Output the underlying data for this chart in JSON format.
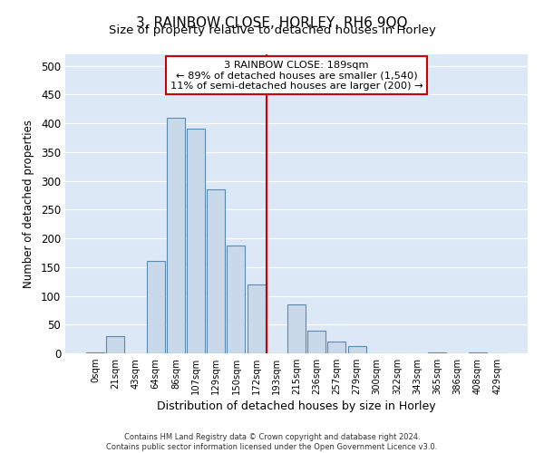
{
  "title": "3, RAINBOW CLOSE, HORLEY, RH6 9QQ",
  "subtitle": "Size of property relative to detached houses in Horley",
  "xlabel": "Distribution of detached houses by size in Horley",
  "ylabel": "Number of detached properties",
  "bar_labels": [
    "0sqm",
    "21sqm",
    "43sqm",
    "64sqm",
    "86sqm",
    "107sqm",
    "129sqm",
    "150sqm",
    "172sqm",
    "193sqm",
    "215sqm",
    "236sqm",
    "257sqm",
    "279sqm",
    "300sqm",
    "322sqm",
    "343sqm",
    "365sqm",
    "386sqm",
    "408sqm",
    "429sqm"
  ],
  "bar_heights": [
    2,
    30,
    0,
    160,
    410,
    390,
    285,
    188,
    120,
    0,
    85,
    40,
    20,
    12,
    0,
    0,
    0,
    2,
    0,
    2,
    0
  ],
  "bar_color": "#c9d9ea",
  "bar_edge_color": "#5a8ab0",
  "vline_x": 9.0,
  "vline_color": "#cc0000",
  "ylim": [
    0,
    520
  ],
  "yticks": [
    0,
    50,
    100,
    150,
    200,
    250,
    300,
    350,
    400,
    450,
    500
  ],
  "annotation_title": "3 RAINBOW CLOSE: 189sqm",
  "annotation_line1": "← 89% of detached houses are smaller (1,540)",
  "annotation_line2": "11% of semi-detached houses are larger (200) →",
  "footer1": "Contains HM Land Registry data © Crown copyright and database right 2024.",
  "footer2": "Contains public sector information licensed under the Open Government Licence v3.0.",
  "bg_color": "#dce8f5",
  "fig_bg": "#ffffff",
  "title_fontsize": 11,
  "subtitle_fontsize": 9.5
}
